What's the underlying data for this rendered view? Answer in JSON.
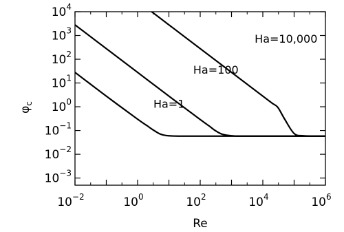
{
  "chart_data": {
    "type": "line",
    "title": "",
    "xlabel": "Re",
    "ylabel_base": "φ",
    "ylabel_sub": "c",
    "x_scale": "log",
    "y_scale": "log",
    "xlim": [
      0.01,
      1000000
    ],
    "ylim": [
      0.0005,
      10000
    ],
    "grid": false,
    "legend": "none",
    "line_color": "#000000",
    "x_ticks": [
      {
        "base": "10",
        "exp": "−2",
        "value": 0.01
      },
      {
        "base": "10",
        "exp": "0",
        "value": 1
      },
      {
        "base": "10",
        "exp": "2",
        "value": 100
      },
      {
        "base": "10",
        "exp": "4",
        "value": 10000
      },
      {
        "base": "10",
        "exp": "6",
        "value": 1000000
      }
    ],
    "y_ticks": [
      {
        "base": "10",
        "exp": "4",
        "value": 10000
      },
      {
        "base": "10",
        "exp": "3",
        "value": 1000
      },
      {
        "base": "10",
        "exp": "2",
        "value": 100
      },
      {
        "base": "10",
        "exp": "1",
        "value": 10
      },
      {
        "base": "10",
        "exp": "0",
        "value": 1
      },
      {
        "base": "10",
        "exp": "−1",
        "value": 0.1
      },
      {
        "base": "10",
        "exp": "−2",
        "value": 0.01
      },
      {
        "base": "10",
        "exp": "−3",
        "value": 0.001
      }
    ],
    "series": [
      {
        "label": "Ha=1",
        "x": [
          0.01,
          0.1,
          1,
          2,
          3,
          5,
          7,
          10,
          20,
          100,
          1000,
          1000000
        ],
        "y": [
          28,
          2.8,
          0.3,
          0.16,
          0.11,
          0.073,
          0.064,
          0.06,
          0.058,
          0.058,
          0.058,
          0.058
        ]
      },
      {
        "label": "Ha=100",
        "x": [
          0.01,
          0.1,
          1,
          10,
          100,
          200,
          300,
          500,
          1000,
          2000,
          10000,
          1000000
        ],
        "y": [
          2800,
          280,
          28,
          2.8,
          0.29,
          0.15,
          0.1,
          0.07,
          0.06,
          0.058,
          0.058,
          0.058
        ]
      },
      {
        "label": "Ha=10,000",
        "x": [
          1,
          10,
          100,
          1000,
          10000,
          20000,
          30000,
          50000,
          100000,
          200000,
          1000000
        ],
        "y": [
          28000,
          2800,
          280,
          28,
          2.8,
          1.4,
          0.95,
          0.3,
          0.075,
          0.06,
          0.058
        ]
      }
    ],
    "annotations": [
      {
        "text": "Ha=1",
        "x": 3.2,
        "y": 0.9
      },
      {
        "text": "Ha=100",
        "x": 60,
        "y": 25
      },
      {
        "text": "Ha=10,000",
        "x": 5500,
        "y": 500
      }
    ]
  }
}
